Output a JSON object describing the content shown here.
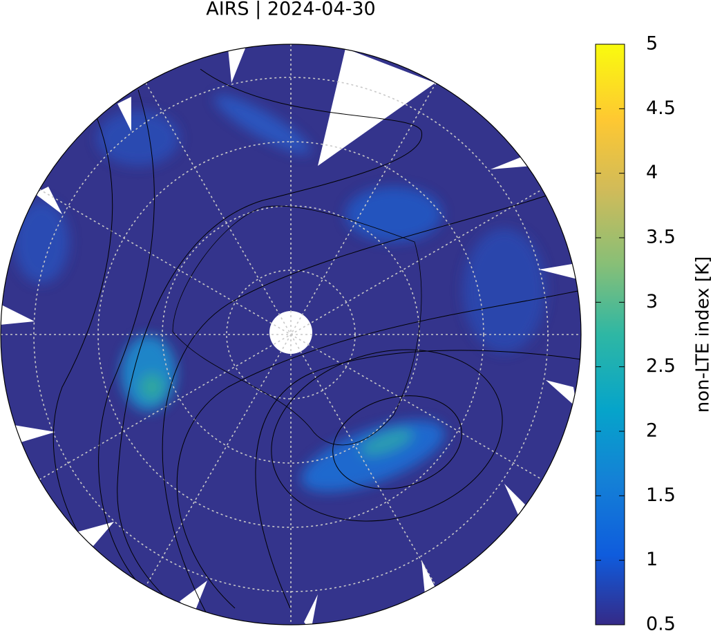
{
  "title": "AIRS | 2024-04-30",
  "colorbar": {
    "label": "non-LTE index [K]",
    "lim": [
      0.5,
      5
    ],
    "ticks": [
      0.5,
      1,
      1.5,
      2,
      2.5,
      3,
      3.5,
      4,
      4.5,
      5
    ]
  }
}
